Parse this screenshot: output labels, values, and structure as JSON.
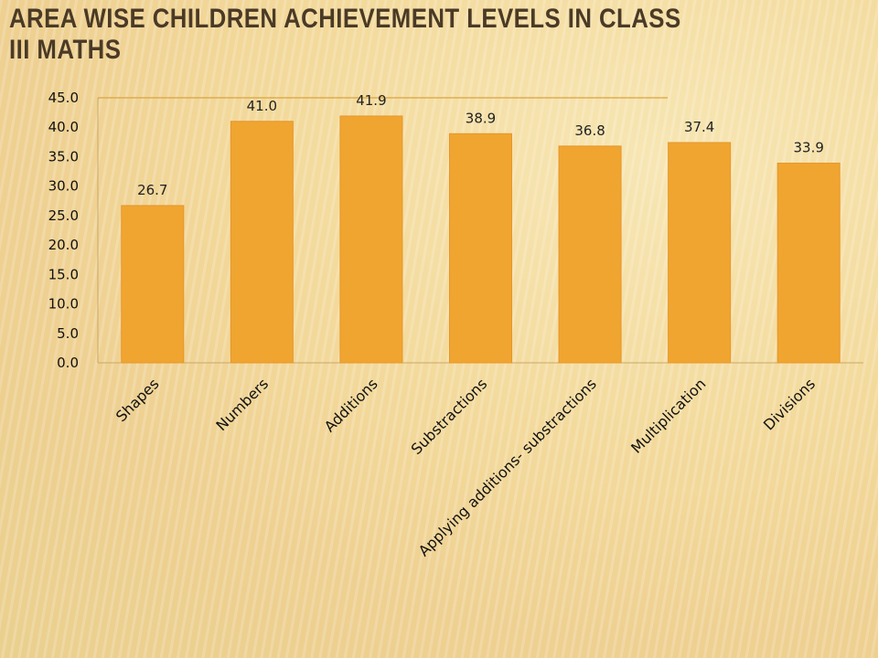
{
  "slide": {
    "title": "Area wise  children achievement levels in class III maths"
  },
  "chart_data": {
    "type": "bar",
    "categories": [
      "Shapes",
      "Numbers",
      "Additions",
      "Substractions",
      "Applying additions- substractions",
      "Multiplication",
      "Divisions"
    ],
    "values": [
      26.7,
      41.0,
      41.9,
      38.9,
      36.8,
      37.4,
      33.9
    ],
    "value_labels": [
      "26.7",
      "41.0",
      "41.9",
      "38.9",
      "36.8",
      "37.4",
      "33.9"
    ],
    "y_ticks": [
      "0.0",
      "5.0",
      "10.0",
      "15.0",
      "20.0",
      "25.0",
      "30.0",
      "35.0",
      "40.0",
      "45.0"
    ],
    "ylim": [
      0,
      45
    ],
    "bar_color": "#f0a530",
    "grid": false,
    "legend": "none"
  }
}
